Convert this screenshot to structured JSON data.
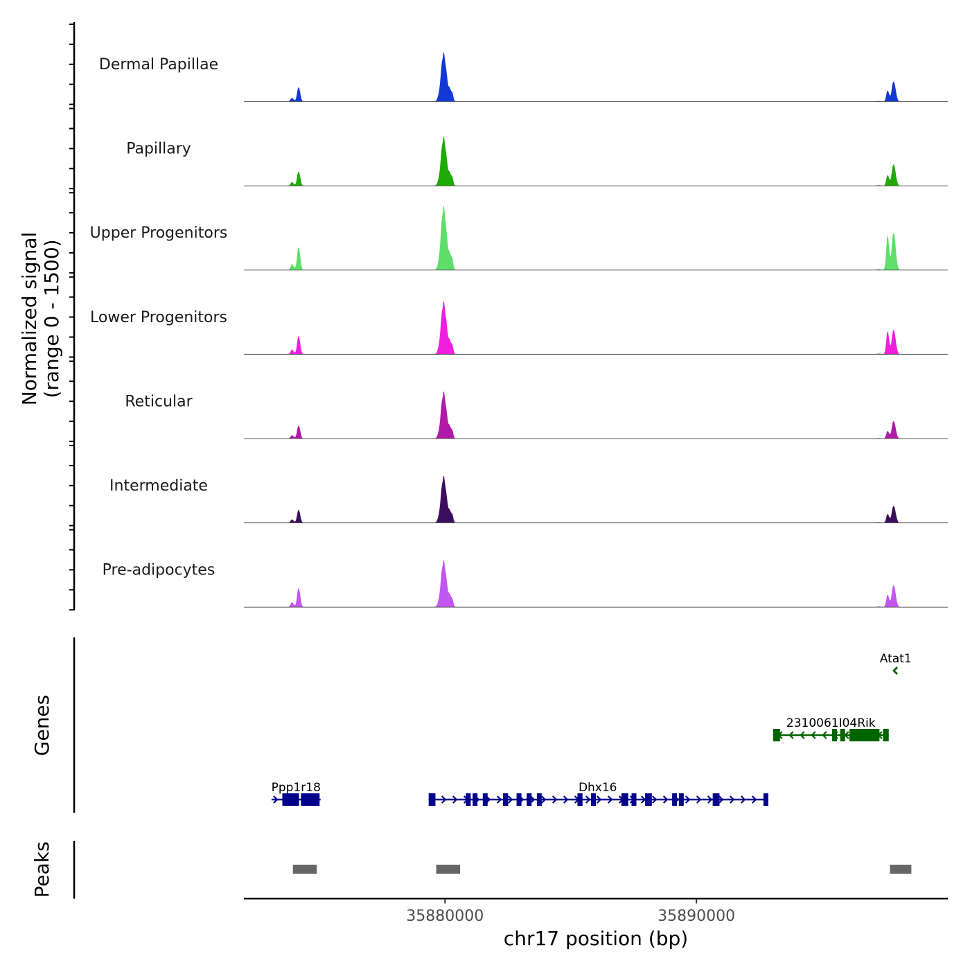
{
  "chart_data": {
    "type": "area",
    "title": "",
    "chromosome": "chr17",
    "xlabel": "chr17 position (bp)",
    "ylabel": "Normalized signal",
    "ylabel_range": "(range 0 - 1500)",
    "xlim": [
      35872000,
      35900000
    ],
    "ylim": [
      0,
      1500
    ],
    "xticks": [
      {
        "value": 35880000,
        "label": "35880000"
      },
      {
        "value": 35890000,
        "label": "35890000"
      }
    ],
    "peak_centers": [
      35874180,
      35879950,
      35897850
    ],
    "tracks": [
      {
        "name": "Dermal Papillae",
        "color": "#1438d6",
        "heights": {
          "small": 330,
          "main": 1150,
          "right1": 250,
          "right2": 460
        }
      },
      {
        "name": "Papillary",
        "color": "#1faa08",
        "heights": {
          "small": 330,
          "main": 1150,
          "right1": 240,
          "right2": 490
        }
      },
      {
        "name": "Upper Progenitors",
        "color": "#5fdf6a",
        "heights": {
          "small": 530,
          "main": 1500,
          "right1": 780,
          "right2": 850
        }
      },
      {
        "name": "Lower Progenitors",
        "color": "#f01edf",
        "heights": {
          "small": 420,
          "main": 1240,
          "right1": 520,
          "right2": 560
        }
      },
      {
        "name": "Reticular",
        "color": "#b11aa6",
        "heights": {
          "small": 300,
          "main": 1100,
          "right1": 170,
          "right2": 400
        }
      },
      {
        "name": "Intermediate",
        "color": "#3b0f5e",
        "heights": {
          "small": 300,
          "main": 1100,
          "right1": 200,
          "right2": 390
        }
      },
      {
        "name": "Pre-adipocytes",
        "color": "#c156f0",
        "heights": {
          "small": 440,
          "main": 1100,
          "right1": 280,
          "right2": 500
        }
      }
    ],
    "genes_label": "Genes",
    "genes": [
      {
        "name": "Atat1",
        "strand": "-",
        "start": 35897850,
        "end": 35898000,
        "color": "#006400",
        "row": 1
      },
      {
        "name": "2310061I04Rik",
        "strand": "-",
        "start": 35893050,
        "end": 35897650,
        "color": "#006400",
        "row": 2
      },
      {
        "name": "Ppp1r18",
        "strand": "+",
        "start": 35873100,
        "end": 35875050,
        "color": "#00008b",
        "row": 3
      },
      {
        "name": "Dhx16",
        "strand": "+",
        "start": 35879350,
        "end": 35892800,
        "color": "#00008b",
        "row": 3
      }
    ],
    "peaks_label": "Peaks",
    "peaks": [
      {
        "start": 35873950,
        "end": 35874900
      },
      {
        "start": 35879650,
        "end": 35880600
      },
      {
        "start": 35897700,
        "end": 35898550
      }
    ],
    "peak_color": "#666666"
  }
}
